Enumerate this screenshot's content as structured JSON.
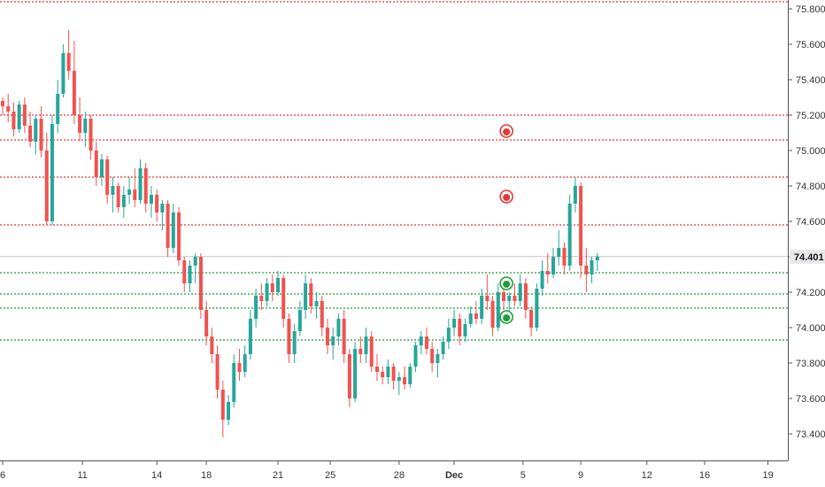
{
  "chart_data": {
    "type": "candlestick",
    "y_axis": {
      "ylim": [
        73.25,
        75.85
      ],
      "ticks": [
        "73.400",
        "73.600",
        "73.800",
        "74.000",
        "74.200",
        "74.400",
        "74.600",
        "74.800",
        "75.000",
        "75.200",
        "75.400",
        "75.600",
        "75.800"
      ]
    },
    "x_axis": {
      "tick_labels": [
        {
          "label": "6",
          "index": 0
        },
        {
          "label": "11",
          "index": 14.5
        },
        {
          "label": "14",
          "index": 28
        },
        {
          "label": "18",
          "index": 37
        },
        {
          "label": "21",
          "index": 50
        },
        {
          "label": "25",
          "index": 59.5
        },
        {
          "label": "28",
          "index": 72
        },
        {
          "label": "Dec",
          "index": 82
        },
        {
          "label": "5",
          "index": 94.5
        },
        {
          "label": "9",
          "index": 105
        },
        {
          "label": "12",
          "index": 117
        },
        {
          "label": "16",
          "index": 127.5
        },
        {
          "label": "19",
          "index": 139
        }
      ],
      "bold_labels": [
        "Dec"
      ]
    },
    "last_price": "74.401",
    "last_price_value": 74.401,
    "horizontal_levels": {
      "resistance": [
        75.84,
        75.2,
        75.06,
        74.85,
        74.58
      ],
      "support": [
        74.31,
        74.19,
        74.11,
        73.93
      ]
    },
    "markers": [
      {
        "type": "sell",
        "index": 91.5,
        "value": 75.11
      },
      {
        "type": "sell",
        "index": 91.5,
        "value": 74.74
      },
      {
        "type": "buy",
        "index": 91.5,
        "value": 74.25
      },
      {
        "type": "buy",
        "index": 91.5,
        "value": 74.06
      }
    ],
    "candles": [
      [
        75.28,
        75.3,
        75.2,
        75.25
      ],
      [
        75.25,
        75.32,
        75.16,
        75.22
      ],
      [
        75.22,
        75.27,
        75.08,
        75.12
      ],
      [
        75.12,
        75.28,
        75.1,
        75.26
      ],
      [
        75.26,
        75.3,
        75.1,
        75.14
      ],
      [
        75.14,
        75.22,
        75.02,
        75.05
      ],
      [
        75.05,
        75.2,
        74.98,
        75.18
      ],
      [
        75.18,
        75.25,
        74.96,
        75.0
      ],
      [
        75.0,
        75.1,
        74.58,
        74.6
      ],
      [
        74.6,
        75.2,
        74.58,
        75.15
      ],
      [
        75.15,
        75.4,
        75.1,
        75.32
      ],
      [
        75.32,
        75.6,
        75.3,
        75.55
      ],
      [
        75.55,
        75.68,
        75.4,
        75.45
      ],
      [
        75.45,
        75.62,
        75.15,
        75.2
      ],
      [
        75.2,
        75.3,
        75.05,
        75.1
      ],
      [
        75.1,
        75.22,
        75.02,
        75.18
      ],
      [
        75.18,
        75.2,
        74.95,
        75.0
      ],
      [
        75.0,
        75.05,
        74.8,
        74.85
      ],
      [
        74.85,
        74.98,
        74.8,
        74.95
      ],
      [
        74.95,
        74.97,
        74.7,
        74.75
      ],
      [
        74.75,
        74.85,
        74.65,
        74.8
      ],
      [
        74.8,
        74.82,
        74.65,
        74.68
      ],
      [
        74.68,
        74.8,
        74.62,
        74.75
      ],
      [
        74.75,
        74.85,
        74.7,
        74.78
      ],
      [
        74.78,
        74.9,
        74.68,
        74.72
      ],
      [
        74.72,
        74.95,
        74.7,
        74.9
      ],
      [
        74.9,
        74.93,
        74.65,
        74.7
      ],
      [
        74.7,
        74.8,
        74.62,
        74.75
      ],
      [
        74.75,
        74.78,
        74.6,
        74.65
      ],
      [
        74.65,
        74.72,
        74.55,
        74.7
      ],
      [
        74.7,
        74.72,
        74.4,
        74.45
      ],
      [
        74.45,
        74.7,
        74.42,
        74.65
      ],
      [
        74.65,
        74.68,
        74.35,
        74.38
      ],
      [
        74.38,
        74.4,
        74.2,
        74.25
      ],
      [
        74.25,
        74.38,
        74.2,
        74.35
      ],
      [
        74.35,
        74.42,
        74.25,
        74.4
      ],
      [
        74.4,
        74.42,
        74.05,
        74.1
      ],
      [
        74.1,
        74.15,
        73.9,
        73.95
      ],
      [
        73.95,
        74.0,
        73.8,
        73.85
      ],
      [
        73.85,
        73.9,
        73.6,
        73.65
      ],
      [
        73.65,
        73.7,
        73.38,
        73.48
      ],
      [
        73.48,
        73.62,
        73.45,
        73.58
      ],
      [
        73.58,
        73.85,
        73.55,
        73.8
      ],
      [
        73.8,
        73.88,
        73.7,
        73.75
      ],
      [
        73.75,
        73.9,
        73.72,
        73.85
      ],
      [
        73.85,
        74.1,
        73.82,
        74.05
      ],
      [
        74.05,
        74.22,
        74.0,
        74.18
      ],
      [
        74.18,
        74.25,
        74.1,
        74.15
      ],
      [
        74.15,
        74.28,
        74.12,
        74.25
      ],
      [
        74.25,
        74.3,
        74.15,
        74.2
      ],
      [
        74.2,
        74.32,
        74.18,
        74.28
      ],
      [
        74.28,
        74.3,
        74.0,
        74.05
      ],
      [
        74.05,
        74.08,
        73.8,
        73.85
      ],
      [
        73.85,
        74.02,
        73.8,
        73.98
      ],
      [
        73.98,
        74.15,
        73.95,
        74.1
      ],
      [
        74.1,
        74.3,
        74.05,
        74.25
      ],
      [
        74.25,
        74.28,
        74.08,
        74.12
      ],
      [
        74.12,
        74.2,
        74.05,
        74.15
      ],
      [
        74.15,
        74.18,
        73.95,
        74.0
      ],
      [
        74.0,
        74.05,
        73.85,
        73.9
      ],
      [
        73.9,
        74.0,
        73.82,
        73.95
      ],
      [
        73.95,
        74.08,
        73.9,
        74.05
      ],
      [
        74.05,
        74.1,
        73.8,
        73.85
      ],
      [
        73.85,
        73.88,
        73.55,
        73.6
      ],
      [
        73.6,
        73.92,
        73.58,
        73.88
      ],
      [
        73.88,
        73.95,
        73.8,
        73.85
      ],
      [
        73.85,
        74.0,
        73.8,
        73.95
      ],
      [
        73.95,
        73.98,
        73.75,
        73.78
      ],
      [
        73.78,
        73.85,
        73.7,
        73.75
      ],
      [
        73.75,
        73.78,
        73.68,
        73.72
      ],
      [
        73.72,
        73.82,
        73.68,
        73.78
      ],
      [
        73.78,
        73.8,
        73.65,
        73.7
      ],
      [
        73.7,
        73.75,
        73.62,
        73.72
      ],
      [
        73.72,
        73.78,
        73.65,
        73.68
      ],
      [
        73.68,
        73.8,
        73.66,
        73.78
      ],
      [
        73.78,
        73.92,
        73.75,
        73.9
      ],
      [
        73.9,
        73.98,
        73.85,
        73.95
      ],
      [
        73.95,
        74.0,
        73.85,
        73.88
      ],
      [
        73.88,
        73.92,
        73.75,
        73.8
      ],
      [
        73.8,
        73.88,
        73.72,
        73.85
      ],
      [
        73.85,
        73.95,
        73.82,
        73.92
      ],
      [
        73.92,
        74.05,
        73.88,
        74.0
      ],
      [
        74.0,
        74.1,
        73.95,
        74.05
      ],
      [
        74.05,
        74.08,
        73.9,
        73.95
      ],
      [
        73.95,
        74.05,
        73.92,
        74.02
      ],
      [
        74.02,
        74.12,
        74.0,
        74.08
      ],
      [
        74.08,
        74.15,
        74.02,
        74.05
      ],
      [
        74.05,
        74.22,
        74.02,
        74.18
      ],
      [
        74.18,
        74.3,
        74.1,
        74.15
      ],
      [
        74.15,
        74.18,
        73.95,
        74.0
      ],
      [
        74.0,
        74.25,
        73.98,
        74.2
      ],
      [
        74.2,
        74.22,
        74.1,
        74.15
      ],
      [
        74.15,
        74.2,
        74.08,
        74.18
      ],
      [
        74.18,
        74.25,
        74.12,
        74.15
      ],
      [
        74.15,
        74.3,
        74.12,
        74.25
      ],
      [
        74.25,
        74.28,
        74.05,
        74.1
      ],
      [
        74.1,
        74.12,
        73.95,
        74.0
      ],
      [
        74.0,
        74.25,
        73.98,
        74.22
      ],
      [
        74.22,
        74.38,
        74.18,
        74.32
      ],
      [
        74.32,
        74.42,
        74.25,
        74.3
      ],
      [
        74.3,
        74.45,
        74.28,
        74.4
      ],
      [
        74.4,
        74.55,
        74.35,
        74.45
      ],
      [
        74.45,
        74.48,
        74.3,
        74.35
      ],
      [
        74.35,
        74.75,
        74.32,
        74.7
      ],
      [
        74.7,
        74.85,
        74.65,
        74.8
      ],
      [
        74.8,
        74.82,
        74.28,
        74.35
      ],
      [
        74.35,
        74.45,
        74.2,
        74.3
      ],
      [
        74.3,
        74.4,
        74.25,
        74.38
      ],
      [
        74.38,
        74.42,
        74.32,
        74.401
      ]
    ]
  }
}
